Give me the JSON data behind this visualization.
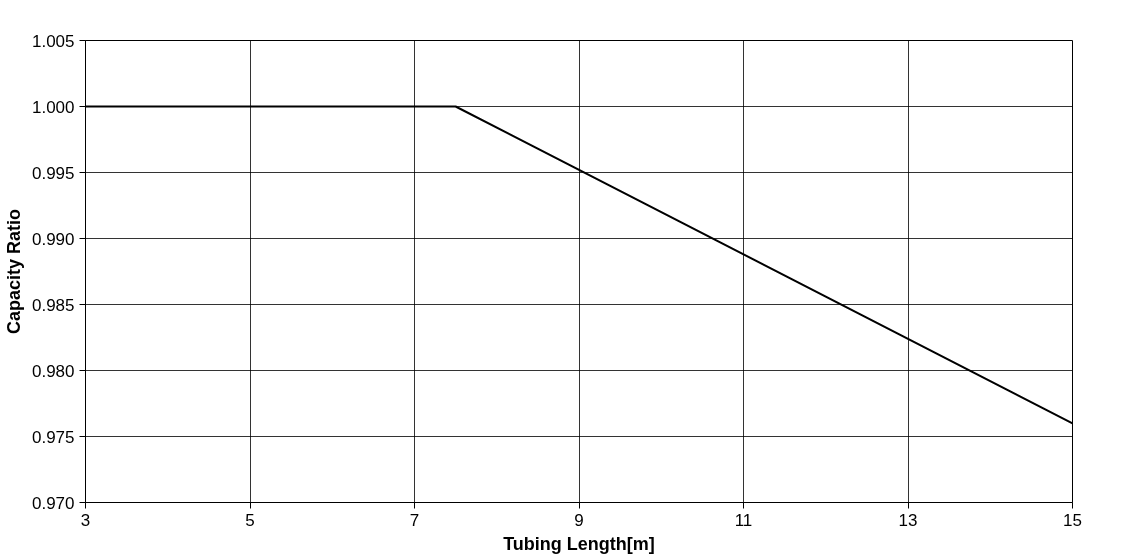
{
  "chart_data": {
    "type": "line",
    "xlabel": "Tubing Length[m]",
    "ylabel": "Capacity Ratio",
    "x": [
      3,
      7.5,
      15
    ],
    "series": [
      {
        "color": "#000000",
        "values": [
          1.0,
          1.0,
          0.976
        ]
      }
    ],
    "xlim": [
      3,
      15
    ],
    "xticks": [
      3,
      5,
      7,
      9,
      11,
      13,
      15
    ],
    "ylim": [
      0.97,
      1.005
    ],
    "yticks": [
      {
        "value": 0.97,
        "label": "0.970"
      },
      {
        "value": 0.975,
        "label": "0.975"
      },
      {
        "value": 0.98,
        "label": "0.980"
      },
      {
        "value": 0.985,
        "label": "0.985"
      },
      {
        "value": 0.99,
        "label": "0.990"
      },
      {
        "value": 0.995,
        "label": "0.995"
      },
      {
        "value": 1.0,
        "label": "1.000"
      },
      {
        "value": 1.005,
        "label": "1.005"
      }
    ],
    "grid": true,
    "marker": "none",
    "line_style": "solid"
  }
}
